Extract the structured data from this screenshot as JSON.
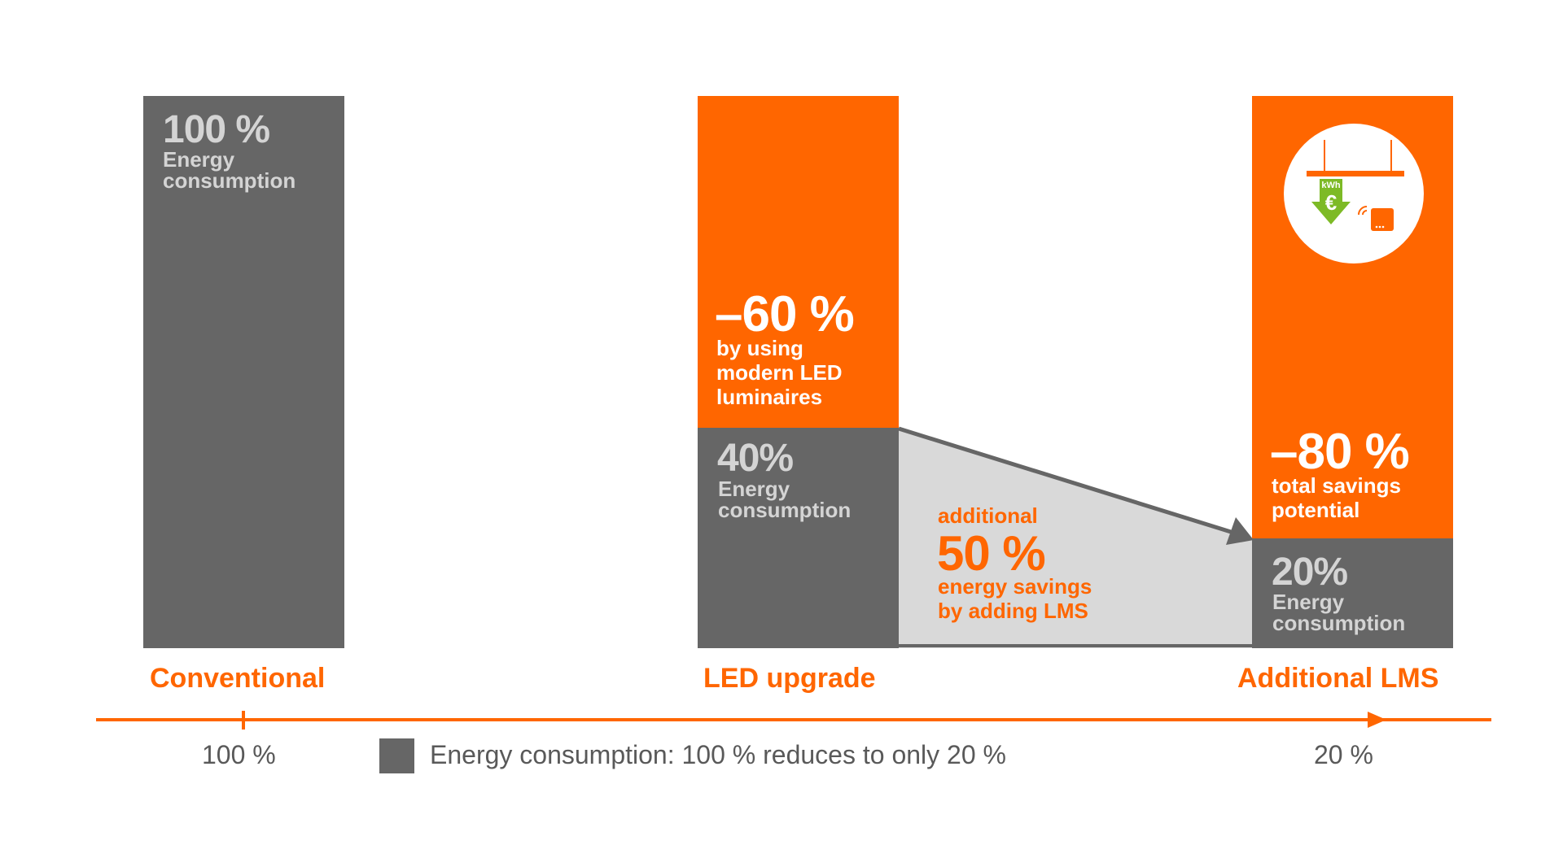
{
  "chart_data": {
    "type": "bar",
    "categories": [
      "Conventional",
      "LED upgrade",
      "Additional LMS"
    ],
    "series": [
      {
        "values": [
          100,
          40,
          20
        ]
      }
    ],
    "ylim": [
      0,
      100
    ],
    "bars": [
      {
        "category": "Conventional",
        "consumption_pct": 100,
        "consumption_label": "100 %",
        "consumption_text": [
          "Energy",
          "consumption"
        ]
      },
      {
        "category": "LED upgrade",
        "consumption_pct": 40,
        "consumption_label": "40%",
        "consumption_text": [
          "Energy",
          "consumption"
        ],
        "savings_label": "–60 %",
        "savings_text": [
          "by using",
          "modern LED",
          "luminaires"
        ]
      },
      {
        "category": "Additional LMS",
        "consumption_pct": 20,
        "consumption_label": "20%",
        "consumption_text": [
          "Energy",
          "consumption"
        ],
        "savings_label": "–80 %",
        "savings_text": [
          "total savings",
          "potential"
        ]
      }
    ],
    "annotation": {
      "top": "additional",
      "value": "50 %",
      "lines": [
        "energy savings",
        "by adding LMS"
      ]
    },
    "axis": {
      "start_label": "100 %",
      "end_label": "20 %"
    },
    "legend": {
      "label": "Energy consumption: 100 % reduces to only 20 %",
      "color": "#666666"
    },
    "icon": {
      "name": "luminaire-kwh-euro-icon",
      "kwh": "kWh",
      "currency": "€"
    },
    "colors": {
      "consumption": "#666666",
      "savings": "#ff6600",
      "additional_area": "#d9d9d9",
      "accent": "#ff6600",
      "icon_arrow": "#7dba26"
    }
  }
}
